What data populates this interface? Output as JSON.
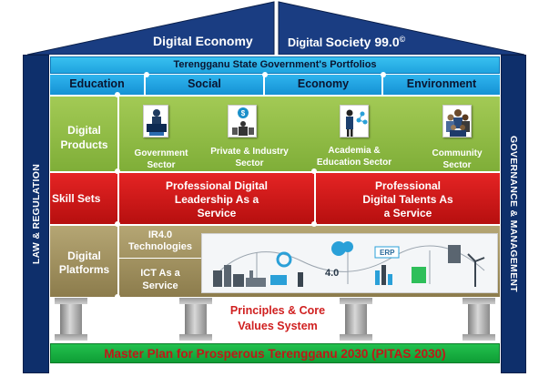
{
  "roof": {
    "left_title": "Digital Economy",
    "right_title_prefix": "Digital ",
    "right_title_main": "Society 99.0",
    "right_title_mark": "©"
  },
  "side": {
    "left": "LAW & REGULATION",
    "right": "GOVERNANCE & MANAGEMENT"
  },
  "portfolio_bar": "Terengganu State Government's Portfolios",
  "portfolios": [
    "Education",
    "Social",
    "Economy",
    "Environment"
  ],
  "digital_products": {
    "label_line1": "Digital",
    "label_line2": "Products",
    "sectors": [
      {
        "line1": "Government",
        "line2": "Sector",
        "icon": "government-icon"
      },
      {
        "line1": "Private & Industry",
        "line2": "Sector",
        "icon": "private-industry-icon"
      },
      {
        "line1": "Academia &",
        "line2": "Education Sector",
        "icon": "academia-icon"
      },
      {
        "line1": "Community",
        "line2": "Sector",
        "icon": "community-icon"
      }
    ]
  },
  "skill_sets": {
    "label": "Skill Sets",
    "left_line1": "Professional Digital",
    "left_line2": "Leadership As  a",
    "left_line3": "Service",
    "right_line1": "Professional",
    "right_line2": "Digital Talents  As",
    "right_line3": "a Service"
  },
  "digital_platforms": {
    "label_line1": "Digital",
    "label_line2": "Platforms",
    "ir_line1": "IR4.0",
    "ir_line2": "Technologies",
    "ict_line1": "ICT As a",
    "ict_line2": "Service",
    "illus_text": "ERP"
  },
  "principles": {
    "line1": "Principles & Core",
    "line2": "Values  System"
  },
  "base": "Master Plan for Prosperous Terengganu 2030 (PITAS 2030)",
  "colors": {
    "navy": "#0e2f6b",
    "cyan": "#1fa3df",
    "green": "#8fbc45",
    "red": "#d41a1a",
    "olive": "#a08f5c",
    "base_green": "#16b043",
    "principle_text": "#d02020",
    "base_text": "#c01818"
  }
}
